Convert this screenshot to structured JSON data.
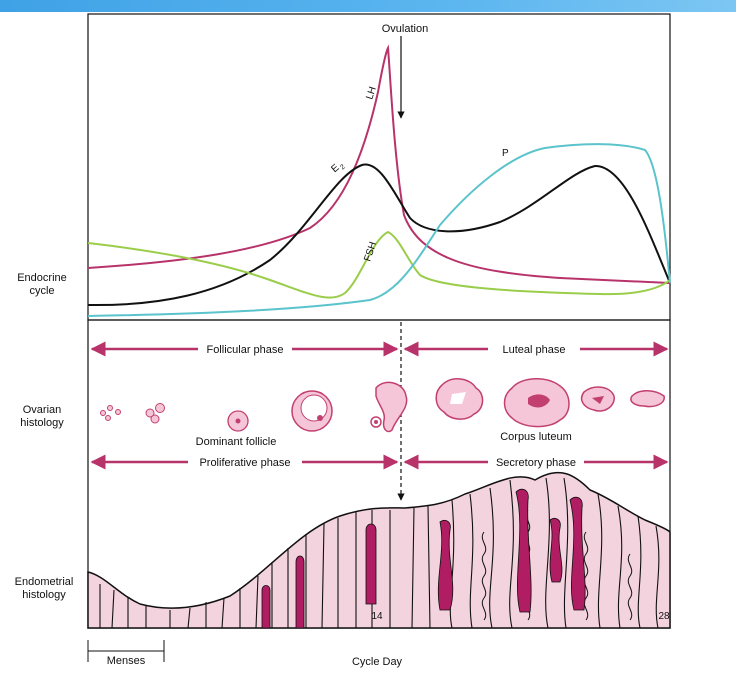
{
  "colors": {
    "LH": "#b8336a",
    "E2": "#111111",
    "FSH": "#9acd4a",
    "P": "#5bc3cc",
    "phase_arrow": "#b8336a",
    "tissue": "#f3d3de",
    "gland": "#b01d63"
  },
  "endocrine": {
    "label_line1": "Endocrine",
    "label_line2": "cycle",
    "ovulation": "Ovulation",
    "LH": "LH",
    "E2": "E",
    "E2_sub": "2",
    "FSH": "FSH",
    "P": "P"
  },
  "ovarian": {
    "label_line1": "Ovarian",
    "label_line2": "histology",
    "follicular_phase": "Follicular phase",
    "luteal_phase": "Luteal  phase",
    "dominant_follicle": "Dominant follicle",
    "corpus_luteum": "Corpus luteum"
  },
  "endometrial": {
    "label_line1": "Endometrial",
    "label_line2": "histology",
    "proliferative_phase": "Proliferative phase",
    "secretory_phase": "Secretory phase"
  },
  "axis": {
    "tick_14": "14",
    "tick_28": "28",
    "menses": "Menses",
    "title": "Cycle Day"
  }
}
